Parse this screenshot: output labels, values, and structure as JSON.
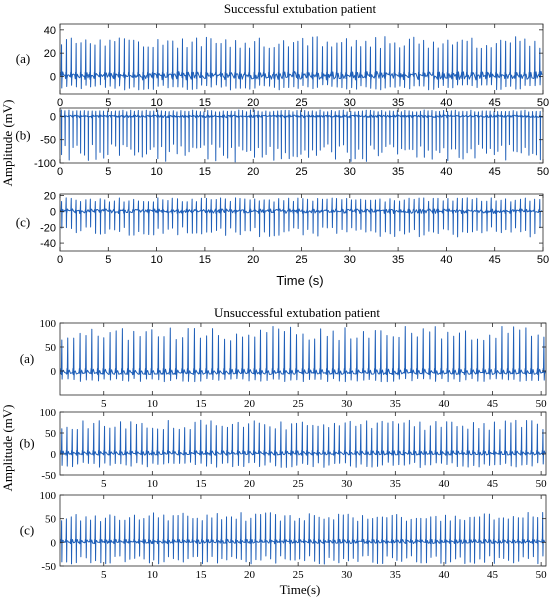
{
  "figure": {
    "top_title": "Successful extubation patient",
    "top_ylabel": "Amplitude (mV)",
    "top_xlabel": "Time (s)",
    "bottom_title": "Unsuccessful extubation patient",
    "bottom_ylabel": "Amplitude (mV)",
    "bottom_xlabel": "Time(s)"
  },
  "colors": {
    "signal": "#1f5fb8",
    "axis": "#262626"
  },
  "chart_data": [
    {
      "type": "line",
      "label": "(a)",
      "title": "Successful extubation patient",
      "xlim": [
        0,
        50
      ],
      "ylim": [
        -15,
        45
      ],
      "xticks": [
        0,
        5,
        10,
        15,
        20,
        25,
        30,
        35,
        40,
        45,
        50
      ],
      "yticks": [
        0,
        20,
        40
      ],
      "beat_interval_s": 0.5,
      "r_peak_mv": 30,
      "s_trough_mv": -10,
      "baseline_mv": 0
    },
    {
      "type": "line",
      "label": "(b)",
      "ylabel": "Amplitude (mV)",
      "xlim": [
        0,
        50
      ],
      "ylim": [
        -100,
        18
      ],
      "xticks": [
        0,
        5,
        10,
        15,
        20,
        25,
        30,
        35,
        40,
        45,
        50
      ],
      "yticks": [
        -100,
        -50,
        0
      ],
      "beat_interval_s": 0.4,
      "r_peak_mv": 12,
      "s_trough_mv": -85,
      "baseline_mv": 0
    },
    {
      "type": "line",
      "label": "(c)",
      "xlabel": "Time (s)",
      "xlim": [
        0,
        50
      ],
      "ylim": [
        -50,
        22
      ],
      "xticks": [
        0,
        5,
        10,
        15,
        20,
        25,
        30,
        35,
        40,
        45,
        50
      ],
      "yticks": [
        -40,
        -20,
        0,
        20
      ],
      "beat_interval_s": 0.5,
      "r_peak_mv": 15,
      "s_trough_mv": -28,
      "baseline_mv": 0
    },
    {
      "type": "line",
      "label": "(a)",
      "title": "Unsuccessful extubation patient",
      "xlim": [
        0.5,
        50.5
      ],
      "ylim": [
        -50,
        100
      ],
      "xticks": [
        5,
        10,
        15,
        20,
        25,
        30,
        35,
        40,
        45,
        50
      ],
      "yticks": [
        0,
        50,
        100
      ],
      "beat_interval_s": 0.62,
      "r_peak_mv": 85,
      "s_trough_mv": -15,
      "baseline_mv": -5
    },
    {
      "type": "line",
      "label": "(b)",
      "ylabel": "Amplitude (mV)",
      "xlim": [
        0.5,
        50.5
      ],
      "ylim": [
        -50,
        100
      ],
      "xticks": [
        5,
        10,
        15,
        20,
        25,
        30,
        35,
        40,
        45,
        50
      ],
      "yticks": [
        -50,
        0,
        50,
        100
      ],
      "beat_interval_s": 0.55,
      "r_peak_mv": 70,
      "s_trough_mv": -28,
      "baseline_mv": 0
    },
    {
      "type": "line",
      "label": "(c)",
      "xlabel": "Time(s)",
      "xlim": [
        0.5,
        50.5
      ],
      "ylim": [
        -50,
        100
      ],
      "xticks": [
        5,
        10,
        15,
        20,
        25,
        30,
        35,
        40,
        45,
        50
      ],
      "yticks": [
        -50,
        0,
        50,
        100
      ],
      "beat_interval_s": 0.5,
      "r_peak_mv": 55,
      "s_trough_mv": -40,
      "baseline_mv": 0
    }
  ]
}
